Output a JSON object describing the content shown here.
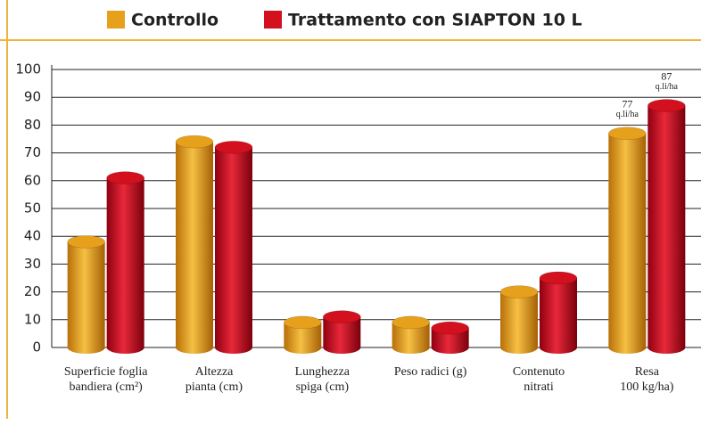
{
  "chart_data": {
    "type": "bar",
    "categories": [
      [
        "Superficie foglia",
        "bandiera (cm²)"
      ],
      [
        "Altezza",
        "pianta (cm)"
      ],
      [
        "Lunghezza",
        "spiga (cm)"
      ],
      [
        "Peso radici (g)"
      ],
      [
        "Contenuto",
        "nitrati"
      ],
      [
        "Resa",
        "100 kg/ha)"
      ]
    ],
    "series": [
      {
        "name": "Controllo",
        "color": "#e6a01c",
        "values": [
          38,
          74,
          9,
          9,
          20,
          77
        ],
        "value_labels": [
          null,
          null,
          null,
          null,
          null,
          "77"
        ]
      },
      {
        "name": "Trattamento con SIAPTON 10 L",
        "color": "#d2101e",
        "values": [
          61,
          72,
          11,
          7,
          25,
          87
        ],
        "value_labels": [
          null,
          null,
          null,
          null,
          null,
          "87"
        ]
      }
    ],
    "value_label_unit": "q.li/ha",
    "ylim": [
      0,
      100
    ],
    "yticks": [
      0,
      10,
      20,
      30,
      40,
      50,
      60,
      70,
      80,
      90,
      100
    ],
    "grid": true
  }
}
